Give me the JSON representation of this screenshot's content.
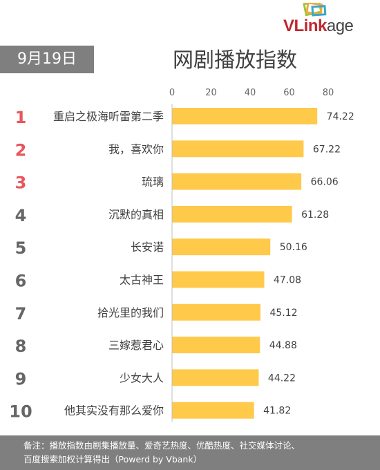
{
  "brand": {
    "logo_text_main": "VLink",
    "logo_text_rest": "age"
  },
  "date_badge": "9月19日",
  "footer": {
    "line1": "备注：播放指数由剧集播放量、爱奇艺热度、优酷热度、社交媒体讨论、",
    "line2": "百度搜索加权计算得出（Powerd by Vbank）"
  },
  "colors": {
    "bar": "#ffc94a",
    "rank_top": "#e8565d",
    "rank_other": "#666666",
    "badge": "#7f7f7f"
  },
  "chart_data": {
    "type": "bar",
    "orientation": "horizontal",
    "title": "网剧播放指数",
    "xlim": [
      0,
      80
    ],
    "xticks": [
      0,
      20,
      40,
      60,
      80
    ],
    "ranks": [
      "1",
      "2",
      "3",
      "4",
      "5",
      "6",
      "7",
      "8",
      "9",
      "10"
    ],
    "categories": [
      "重启之极海听雷第二季",
      "我，喜欢你",
      "琉璃",
      "沉默的真相",
      "长安诺",
      "太古神王",
      "拾光里的我们",
      "三嫁惹君心",
      "少女大人",
      "他其实没有那么爱你"
    ],
    "values": [
      74.22,
      67.22,
      66.06,
      61.28,
      50.16,
      47.08,
      45.12,
      44.88,
      44.22,
      41.82
    ],
    "value_labels": [
      "74.22",
      "67.22",
      "66.06",
      "61.28",
      "50.16",
      "47.08",
      "45.12",
      "44.88",
      "44.22",
      "41.82"
    ]
  }
}
